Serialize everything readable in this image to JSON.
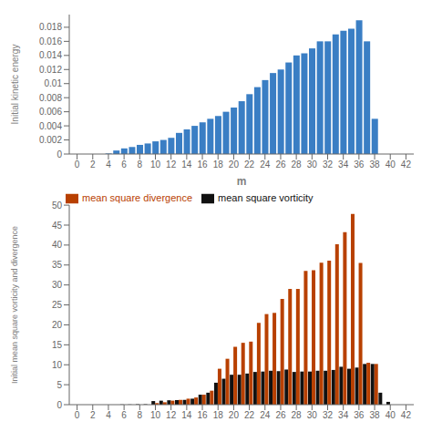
{
  "chart_data": [
    {
      "type": "bar",
      "x": [
        0,
        1,
        2,
        3,
        4,
        5,
        6,
        7,
        8,
        9,
        10,
        11,
        12,
        13,
        14,
        15,
        16,
        17,
        18,
        19,
        20,
        21,
        22,
        23,
        24,
        25,
        26,
        27,
        28,
        29,
        30,
        31,
        32,
        33,
        34,
        35,
        36,
        37,
        38,
        39,
        40,
        41,
        42
      ],
      "values": [
        0.0,
        0.0,
        0.0,
        0.0,
        8e-05,
        0.0005,
        0.0008,
        0.001,
        0.0013,
        0.0015,
        0.0018,
        0.002,
        0.0023,
        0.003,
        0.0035,
        0.004,
        0.0045,
        0.005,
        0.0054,
        0.006,
        0.0066,
        0.0075,
        0.0085,
        0.0095,
        0.0105,
        0.0115,
        0.012,
        0.013,
        0.014,
        0.0143,
        0.015,
        0.016,
        0.016,
        0.017,
        0.0175,
        0.0178,
        0.019,
        0.016,
        0.005,
        0.0,
        0.0,
        0.0,
        0.0
      ],
      "color": "#3a7ec4",
      "xlabel": "m",
      "ylabel": "Initial kinetic energy",
      "xlim": [
        -1,
        43
      ],
      "xticks": [
        0,
        2,
        4,
        6,
        8,
        10,
        12,
        14,
        16,
        18,
        20,
        22,
        24,
        26,
        28,
        30,
        32,
        34,
        36,
        38,
        40,
        42
      ],
      "ylim": [
        0,
        0.0198
      ],
      "yticks": [
        0,
        0.002,
        0.004,
        0.006,
        0.008,
        0.01,
        0.012,
        0.014,
        0.016,
        0.018
      ],
      "grid": false
    },
    {
      "type": "bar",
      "x": [
        0,
        1,
        2,
        3,
        4,
        5,
        6,
        7,
        8,
        9,
        10,
        11,
        12,
        13,
        14,
        15,
        16,
        17,
        18,
        19,
        20,
        21,
        22,
        23,
        24,
        25,
        26,
        27,
        28,
        29,
        30,
        31,
        32,
        33,
        34,
        35,
        36,
        37,
        38,
        39,
        40,
        41,
        42
      ],
      "series": [
        {
          "name": "mean square vorticity",
          "color": "#111111",
          "values": [
            0.0,
            0.0,
            0.0,
            0.0,
            0.0,
            0.0,
            0.05,
            0.05,
            0.1,
            0.1,
            0.9,
            1.0,
            1.1,
            1.15,
            1.2,
            1.5,
            2.5,
            3.0,
            5.5,
            6.5,
            7.5,
            7.5,
            7.8,
            8.2,
            8.3,
            8.5,
            8.4,
            8.8,
            8.2,
            8.3,
            8.3,
            8.5,
            8.5,
            8.7,
            9.5,
            9.0,
            9.3,
            10.2,
            10.2,
            3.0,
            0.7,
            0.0,
            0.0
          ]
        },
        {
          "name": "mean square divergence",
          "color": "#b84000",
          "values": [
            0.0,
            0.0,
            0.0,
            0.0,
            0.0,
            0.0,
            0.0,
            0.0,
            0.0,
            0.0,
            0.4,
            0.6,
            1.0,
            1.2,
            1.5,
            1.8,
            2.5,
            3.5,
            9.0,
            11.5,
            14.5,
            15.5,
            15.8,
            20.5,
            22.7,
            23.0,
            26.5,
            29.0,
            29.0,
            33.5,
            33.7,
            35.6,
            36.1,
            40.2,
            43.2,
            47.8,
            35.5,
            10.5,
            10.2,
            0.0,
            0.0,
            0.0,
            0.0
          ]
        }
      ],
      "ylabel": "Initial mean square vorticity and divergence",
      "xlim": [
        -1,
        43
      ],
      "xticks": [
        0,
        2,
        4,
        6,
        8,
        10,
        12,
        14,
        16,
        18,
        20,
        22,
        24,
        26,
        28,
        30,
        32,
        34,
        36,
        38,
        40,
        42
      ],
      "ylim": [
        0,
        50
      ],
      "yticks": [
        0,
        5,
        10,
        15,
        20,
        25,
        30,
        35,
        40,
        45,
        50
      ],
      "legend": "upper left",
      "grid": false
    }
  ]
}
